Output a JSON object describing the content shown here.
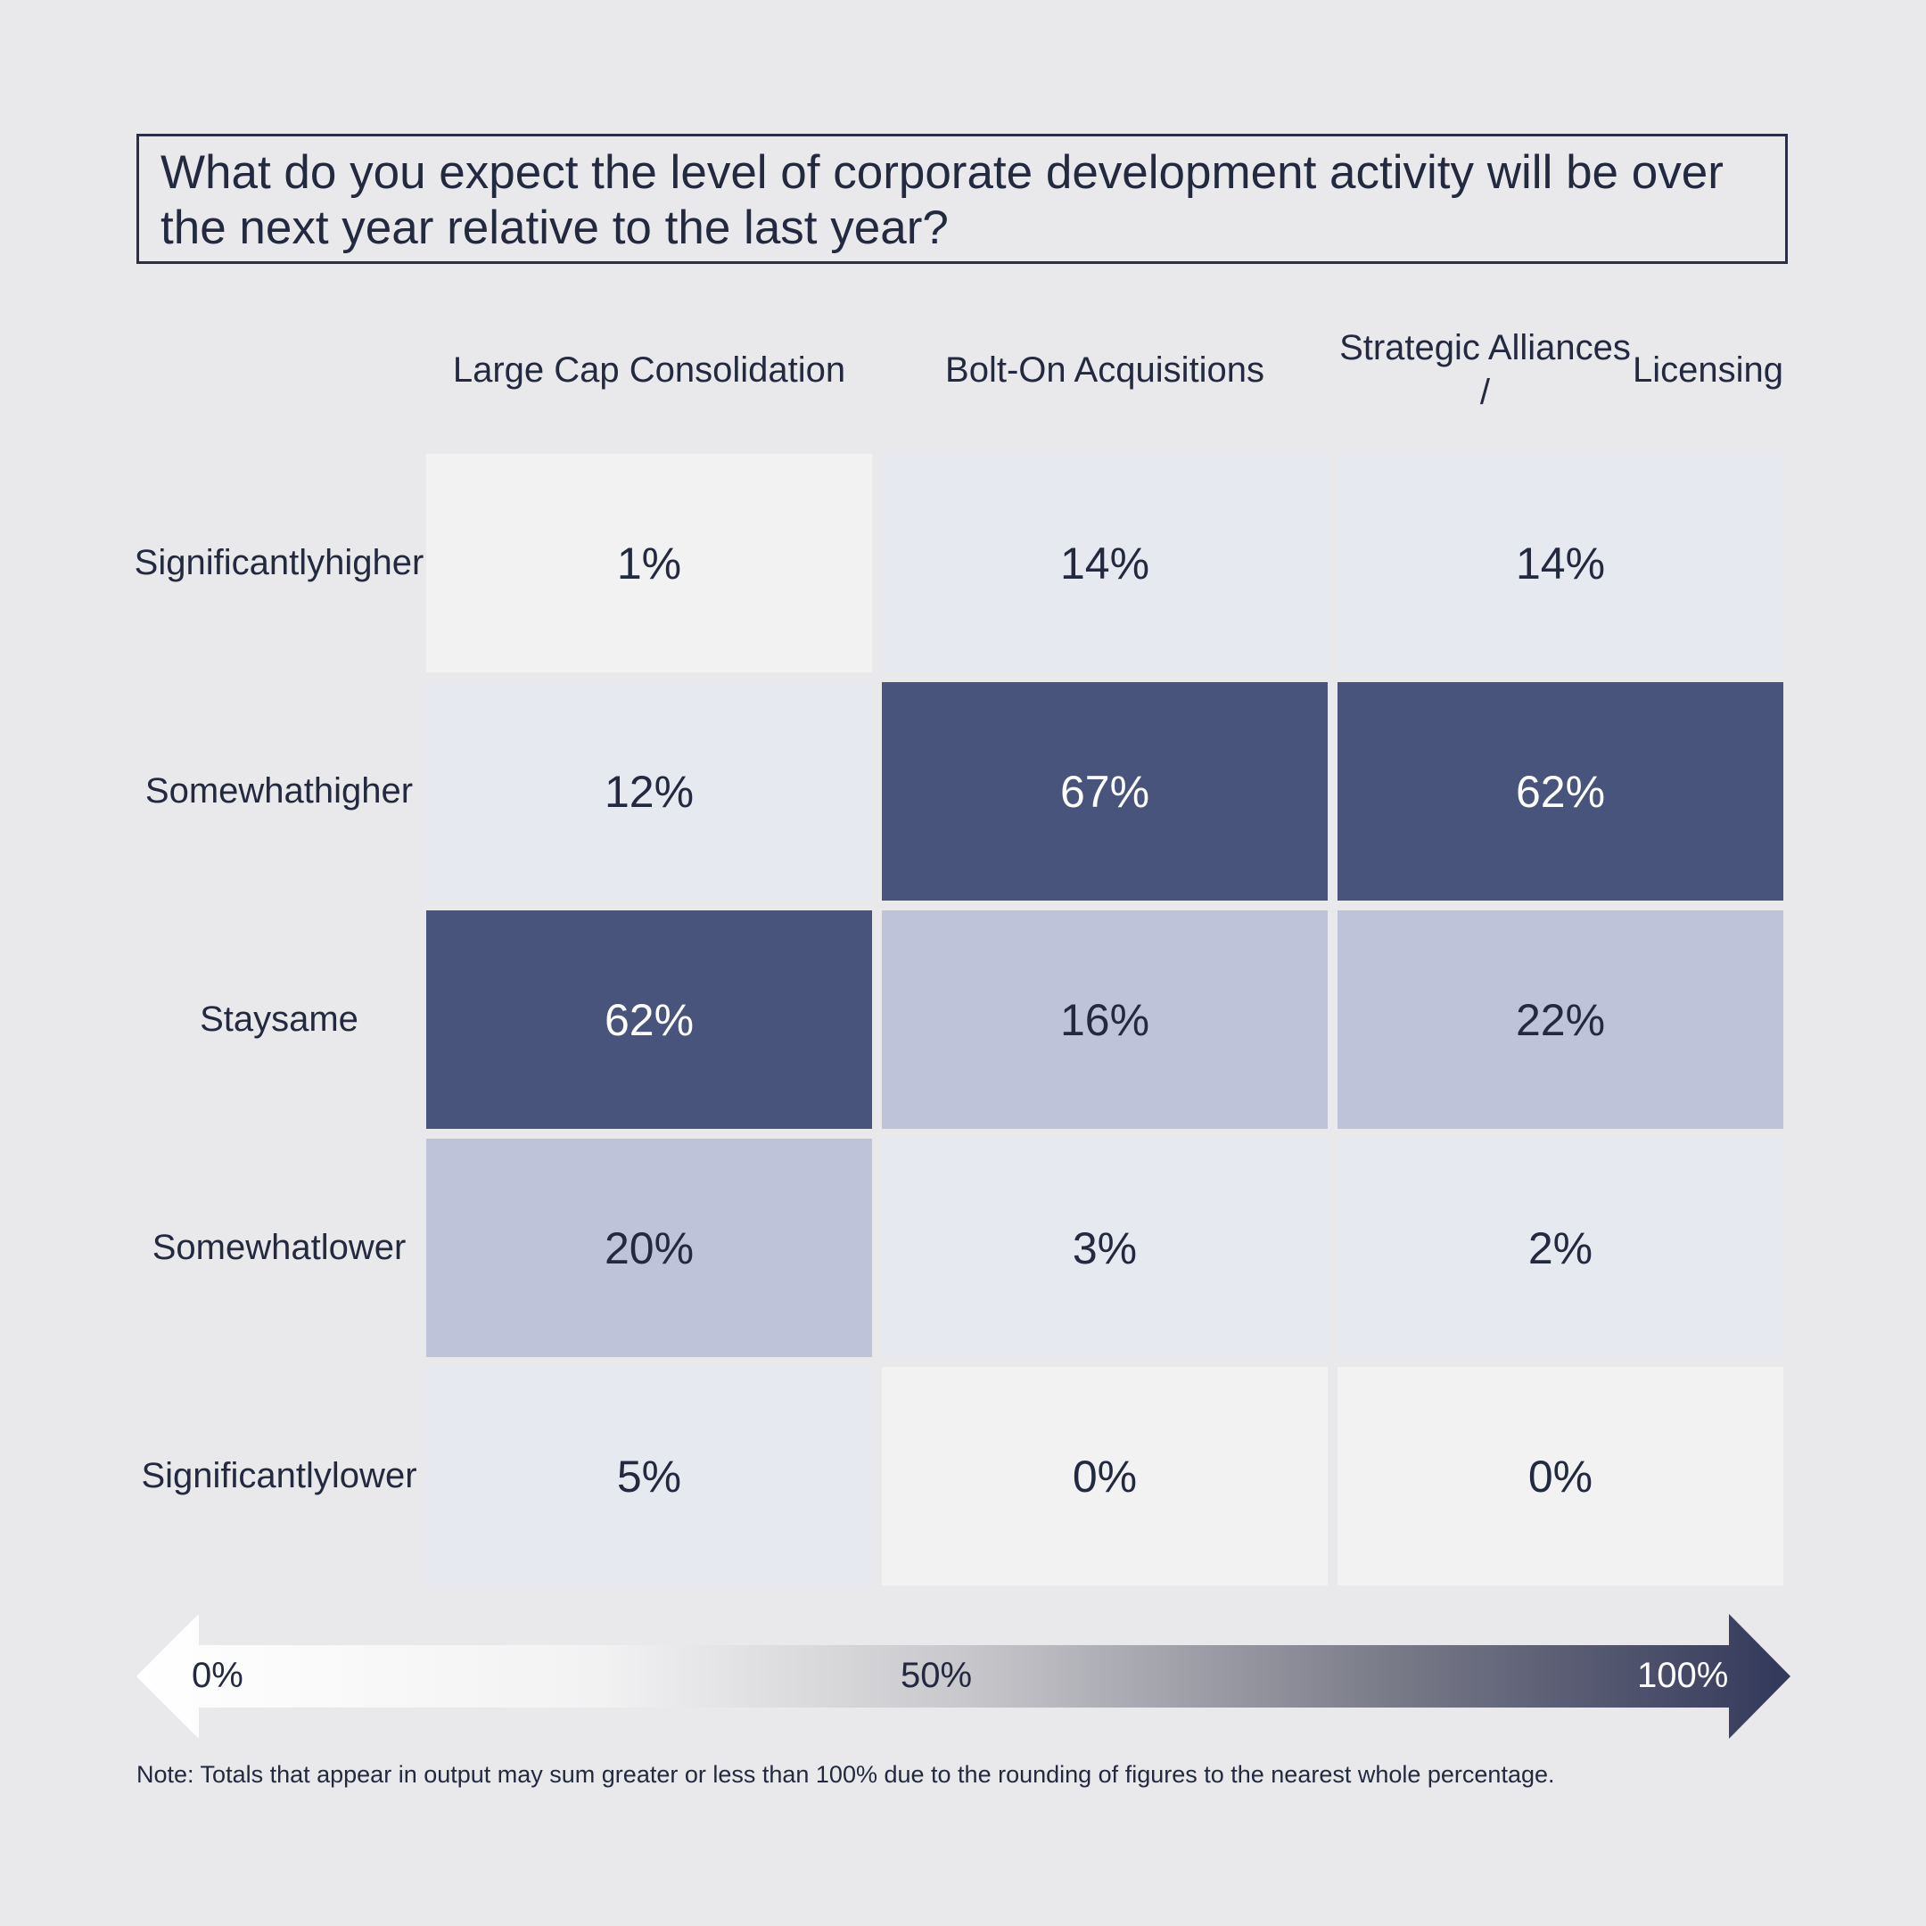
{
  "title": "What do you expect the level of corporate development activity will be over the next year relative to the last year?",
  "chart_data": {
    "type": "heatmap",
    "title": "What do you expect the level of corporate development activity will be over the next year relative to the last year?",
    "columns": [
      "Large Cap Consolidation",
      "Bolt-On Acquisitions",
      "Strategic Alliances / Licensing"
    ],
    "rows": [
      "Significantly higher",
      "Somewhat higher",
      "Stay same",
      "Somewhat lower",
      "Significantly lower"
    ],
    "row_labels_display": [
      [
        "Significantly",
        "higher"
      ],
      [
        "Somewhat",
        "higher"
      ],
      [
        "Stay",
        "same"
      ],
      [
        "Somewhat",
        "lower"
      ],
      [
        "Significantly",
        "lower"
      ]
    ],
    "column_labels_display": [
      [
        "Large Cap Consolidation"
      ],
      [
        "Bolt-On Acquisitions"
      ],
      [
        "Strategic Alliances /",
        "Licensing"
      ]
    ],
    "values": [
      [
        1,
        14,
        14
      ],
      [
        12,
        67,
        62
      ],
      [
        62,
        16,
        22
      ],
      [
        20,
        3,
        2
      ],
      [
        5,
        0,
        0
      ]
    ],
    "value_suffix": "%",
    "color_scale": {
      "min": 0,
      "mid": 50,
      "max": 100,
      "labels": [
        "0%",
        "50%",
        "100%"
      ],
      "colors": {
        "lowest": "#f2f2f2",
        "low": "#e7e9f1",
        "mid": "#bec3d9",
        "high": "#48547c",
        "gradient_start": "#ffffff",
        "gradient_end": "#32385a"
      }
    }
  },
  "legend": {
    "min_label": "0%",
    "mid_label": "50%",
    "max_label": "100%"
  },
  "note": "Note: Totals that appear in output may sum greater or less than 100% due to the rounding of figures to the nearest whole percentage."
}
